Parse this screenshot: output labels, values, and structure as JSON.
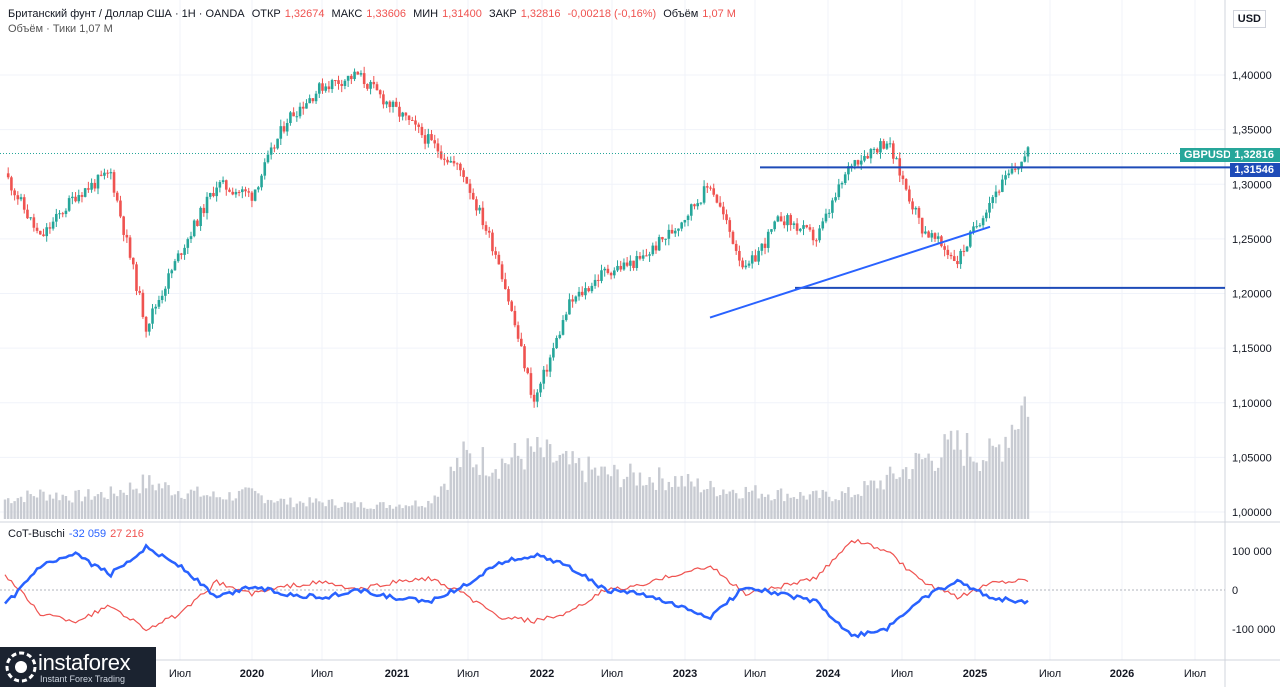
{
  "header": {
    "instrument": "Британский фунт / Доллар США · 1Н · OANDA",
    "open_label": "ОТКР",
    "open": "1,32674",
    "high_label": "МАКС",
    "high": "1,33606",
    "low_label": "МИН",
    "low": "1,31400",
    "close_label": "ЗАКР",
    "close": "1,32816",
    "change": "-0,00218 (-0,16%)",
    "volume_label": "Объём",
    "volume": "1,07 M",
    "volume_line": "Объём · Тики  1,07 M"
  },
  "axis_currency": "USD",
  "price_tags": {
    "ticker": "GBPUSD",
    "last": "1,32816",
    "level": "1,31546"
  },
  "cot": {
    "label": "CoT-Buschi",
    "blue_value": "-32 059",
    "red_value": "27 216"
  },
  "logo": {
    "name": "instaforex",
    "tagline": "Instant Forex Trading"
  },
  "colors": {
    "up": "#26a69a",
    "down": "#ef5350",
    "line_blue": "#2962ff",
    "level_blue": "#1e4bb8",
    "grid": "#f0f3fa"
  },
  "chart_data": [
    {
      "type": "line",
      "title": "",
      "note": "Weekly GBP/USD candles (approximate close path) with volume histogram",
      "x": [
        "2019-05",
        "2019-07",
        "2019-10",
        "2020-01",
        "2020-03",
        "2020-05",
        "2020-07",
        "2020-10",
        "2021-01",
        "2021-03",
        "2021-06",
        "2021-09",
        "2021-12",
        "2022-03",
        "2022-06",
        "2022-09",
        "2022-11",
        "2023-01",
        "2023-03",
        "2023-05",
        "2023-07",
        "2023-10",
        "2024-01",
        "2024-04",
        "2024-07",
        "2024-09",
        "2024-11",
        "2025-01",
        "2025-03",
        "2025-05"
      ],
      "series": [
        {
          "values": [
            1.31,
            1.25,
            1.29,
            1.31,
            1.17,
            1.24,
            1.3,
            1.29,
            1.36,
            1.39,
            1.4,
            1.37,
            1.34,
            1.31,
            1.23,
            1.1,
            1.19,
            1.22,
            1.23,
            1.26,
            1.3,
            1.22,
            1.27,
            1.25,
            1.32,
            1.34,
            1.26,
            1.23,
            1.29,
            1.328
          ]
        }
      ],
      "volume_values": [
        0.7,
        0.9,
        0.8,
        0.9,
        1.3,
        1.0,
        0.8,
        0.9,
        0.6,
        0.6,
        0.5,
        0.5,
        0.6,
        2.2,
        2.0,
        2.4,
        1.9,
        1.6,
        1.5,
        1.4,
        1.1,
        1.0,
        0.9,
        0.8,
        0.9,
        1.4,
        2.1,
        2.6,
        2.2,
        4.4
      ],
      "ylim": [
        1.0,
        1.43
      ],
      "y_ticks": [
        "1,40000",
        "1,35000",
        "1,30000",
        "1,25000",
        "1,20000",
        "1,15000",
        "1,10000",
        "1,05000",
        "1,00000"
      ],
      "x_ticks": [
        "Июл",
        "2020",
        "Июл",
        "2021",
        "Июл",
        "2022",
        "Июл",
        "2023",
        "Июл",
        "2024",
        "Июл",
        "2025",
        "Июл",
        "2026",
        "Июл"
      ],
      "horizontal_levels": [
        1.3154,
        1.2052,
        1.3282
      ],
      "trendline": {
        "from": [
          "2023-03",
          1.178
        ],
        "to": [
          "2024-11",
          1.261
        ]
      }
    },
    {
      "type": "line",
      "title": "",
      "note": "CoT-Buschi indicator panel",
      "x": [
        "2019-05",
        "2019-07",
        "2019-10",
        "2020-01",
        "2020-03",
        "2020-05",
        "2020-07",
        "2020-10",
        "2021-01",
        "2021-03",
        "2021-06",
        "2021-09",
        "2021-12",
        "2022-03",
        "2022-06",
        "2022-09",
        "2022-11",
        "2023-01",
        "2023-03",
        "2023-05",
        "2023-07",
        "2023-10",
        "2024-01",
        "2024-04",
        "2024-07",
        "2024-09",
        "2024-11",
        "2025-01",
        "2025-03",
        "2025-05"
      ],
      "series": [
        {
          "values": [
            -40000,
            60000,
            90000,
            40000,
            110000,
            60000,
            -20000,
            10000,
            -10000,
            -20000,
            0,
            -20000,
            -30000,
            10000,
            70000,
            90000,
            60000,
            0,
            -10000,
            -40000,
            -70000,
            10000,
            -10000,
            -30000,
            -120000,
            -100000,
            -20000,
            20000,
            -20000,
            -32059
          ]
        },
        {
          "values": [
            40000,
            -60000,
            -80000,
            -40000,
            -100000,
            -60000,
            20000,
            -10000,
            10000,
            20000,
            0,
            20000,
            30000,
            -10000,
            -70000,
            -80000,
            -60000,
            0,
            10000,
            40000,
            60000,
            -10000,
            10000,
            30000,
            130000,
            100000,
            20000,
            -20000,
            20000,
            27216
          ]
        }
      ],
      "ylim": [
        -150000,
        150000
      ],
      "y_ticks": [
        "100 000",
        "0",
        "-100 000"
      ]
    }
  ]
}
